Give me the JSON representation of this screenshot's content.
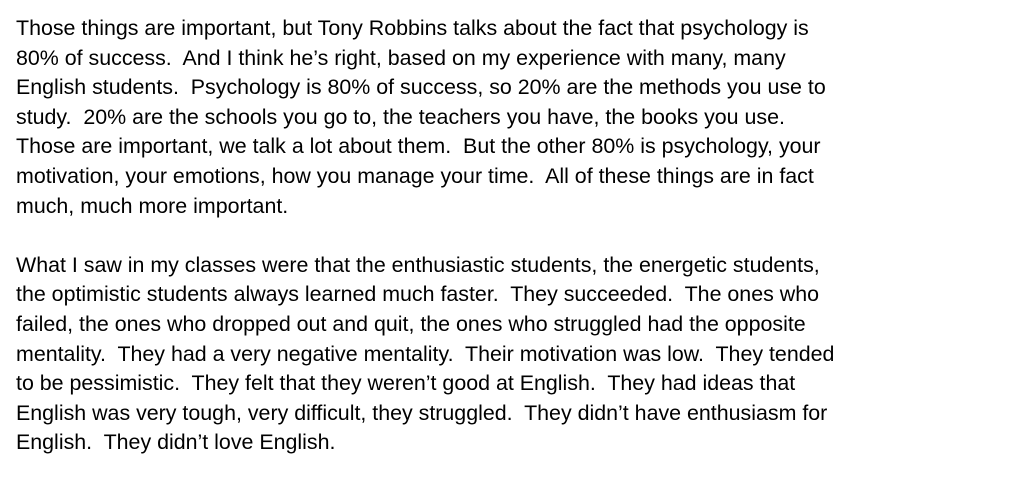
{
  "document": {
    "paragraphs": [
      {
        "lines": [
          "Those things are important, but Tony Robbins talks about the fact that psychology is",
          "80% of success.  And I think he’s right, based on my experience with many, many",
          "English students.  Psychology is 80% of success, so 20% are the methods you use to",
          "study.  20% are the schools you go to, the teachers you have, the books you use.",
          "Those are important, we talk a lot about them.  But the other 80% is psychology, your",
          "motivation, your emotions, how you manage your time.  All of these things are in fact",
          "much, much more important."
        ]
      },
      {
        "lines": [
          "What I saw in my classes were that the enthusiastic students, the energetic students,",
          "the optimistic students always learned much faster.  They succeeded.  The ones who",
          "failed, the ones who dropped out and quit, the ones who struggled had the opposite",
          "mentality.  They had a very negative mentality.  Their motivation was low.  They tended",
          "to be pessimistic.  They felt that they weren’t good at English.  They had ideas that",
          "English was very tough, very difficult, they struggled.  They didn’t have enthusiasm for",
          "English.  They didn’t love English."
        ]
      }
    ]
  }
}
